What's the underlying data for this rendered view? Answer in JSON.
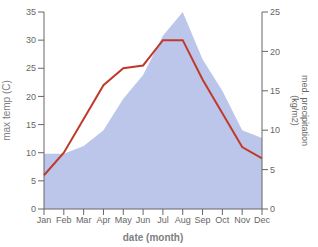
{
  "chart_data": {
    "type": "combo",
    "xlabel": "date (month)",
    "ylabel": "max temp (C)",
    "y2label": "med. precipitation\n(kg/m2)",
    "categories": [
      "Jan",
      "Feb",
      "Mar",
      "Apr",
      "May",
      "Jun",
      "Jul",
      "Aug",
      "Sep",
      "Oct",
      "Nov",
      "Dec"
    ],
    "series": [
      {
        "type": "area",
        "axis": "y2",
        "color": "#b0bce8",
        "values": [
          7,
          7,
          8,
          10,
          14,
          17,
          22,
          25,
          19,
          15,
          10,
          9
        ]
      },
      {
        "type": "line",
        "axis": "y",
        "color": "#c0392b",
        "values": [
          6,
          10,
          16,
          22,
          25,
          25.5,
          30,
          30,
          23,
          17,
          11,
          9
        ]
      }
    ],
    "ylim": [
      0,
      35
    ],
    "yticks": [
      0,
      5,
      10,
      15,
      20,
      25,
      30,
      35
    ],
    "y2lim": [
      0,
      25
    ],
    "y2ticks": [
      0,
      5,
      10,
      15,
      20,
      25
    ],
    "grid": false
  }
}
